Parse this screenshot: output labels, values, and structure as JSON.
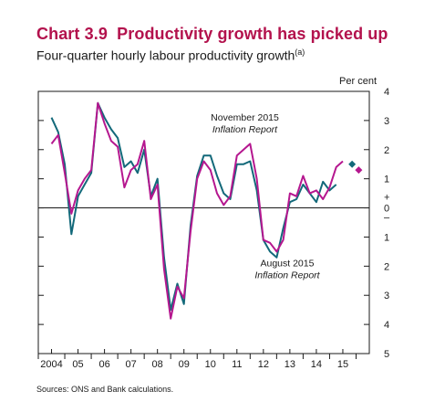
{
  "header": {
    "chart_number": "Chart 3.9",
    "title": "Productivity growth has picked up",
    "subtitle": "Four-quarter hourly labour productivity growth",
    "subtitle_note": "(a)"
  },
  "footer": {
    "source": "Sources:  ONS and Bank calculations."
  },
  "colors": {
    "series_navy": "#13697a",
    "series_magenta": "#b5178f",
    "title_red": "#b3124d",
    "frame": "#1a1a1a"
  },
  "chart_data": {
    "type": "line",
    "unit_label": "Per cent",
    "ylim": [
      -5,
      4
    ],
    "y_axis_direction": "up",
    "y_ticks": [
      -5,
      -4,
      -3,
      -2,
      -1,
      0,
      1,
      2,
      3,
      4
    ],
    "y_tick_labels": [
      "5",
      "4",
      "3",
      "2",
      "1",
      "0",
      "1",
      "2",
      "3",
      "4"
    ],
    "y_sign_labels": [
      "+",
      "–"
    ],
    "xlim": [
      2003.5,
      2016.0
    ],
    "x_tick_labels": [
      "2004",
      "05",
      "06",
      "07",
      "08",
      "09",
      "10",
      "11",
      "12",
      "13",
      "14",
      "15"
    ],
    "x_tick_positions": [
      2004,
      2005,
      2006,
      2007,
      2008,
      2009,
      2010,
      2011,
      2012,
      2013,
      2014,
      2015
    ],
    "grid": false,
    "zero_line": true,
    "series": [
      {
        "color": "#13697a",
        "x": [
          2004.0,
          2004.25,
          2004.5,
          2004.75,
          2005.0,
          2005.25,
          2005.5,
          2005.75,
          2006.0,
          2006.25,
          2006.5,
          2006.75,
          2007.0,
          2007.25,
          2007.5,
          2007.75,
          2008.0,
          2008.25,
          2008.5,
          2008.75,
          2009.0,
          2009.25,
          2009.5,
          2009.75,
          2010.0,
          2010.25,
          2010.5,
          2010.75,
          2011.0,
          2011.25,
          2011.5,
          2011.75,
          2012.0,
          2012.25,
          2012.5,
          2012.75,
          2013.0,
          2013.25,
          2013.5,
          2013.75,
          2014.0,
          2014.25,
          2014.5,
          2014.75
        ],
        "values": [
          3.1,
          2.6,
          1.5,
          -0.9,
          0.4,
          0.8,
          1.2,
          3.6,
          3.1,
          2.7,
          2.4,
          1.4,
          1.6,
          1.2,
          2.0,
          0.4,
          1.0,
          -1.7,
          -3.5,
          -2.6,
          -3.3,
          -0.6,
          1.1,
          1.8,
          1.8,
          1.1,
          0.5,
          0.3,
          1.5,
          1.5,
          1.6,
          0.6,
          -1.1,
          -1.5,
          -1.7,
          -0.7,
          0.2,
          0.3,
          0.8,
          0.5,
          0.2,
          0.9,
          0.6,
          0.8
        ]
      },
      {
        "color": "#b5178f",
        "x": [
          2004.0,
          2004.25,
          2004.5,
          2004.75,
          2005.0,
          2005.25,
          2005.5,
          2005.75,
          2006.0,
          2006.25,
          2006.5,
          2006.75,
          2007.0,
          2007.25,
          2007.5,
          2007.75,
          2008.0,
          2008.25,
          2008.5,
          2008.75,
          2009.0,
          2009.25,
          2009.5,
          2009.75,
          2010.0,
          2010.25,
          2010.5,
          2010.75,
          2011.0,
          2011.25,
          2011.5,
          2011.75,
          2012.0,
          2012.25,
          2012.5,
          2012.75,
          2013.0,
          2013.25,
          2013.5,
          2013.75,
          2014.0,
          2014.25,
          2014.5,
          2014.75,
          2015.0
        ],
        "values": [
          2.2,
          2.5,
          1.2,
          -0.2,
          0.6,
          1.0,
          1.3,
          3.6,
          2.9,
          2.3,
          2.1,
          0.7,
          1.3,
          1.5,
          2.3,
          0.3,
          0.8,
          -2.1,
          -3.8,
          -2.7,
          -3.1,
          -0.8,
          1.0,
          1.6,
          1.3,
          0.5,
          0.1,
          0.4,
          1.8,
          2.0,
          2.2,
          1.0,
          -1.1,
          -1.2,
          -1.5,
          -1.1,
          0.5,
          0.4,
          1.1,
          0.5,
          0.6,
          0.3,
          0.7,
          1.4,
          1.6
        ]
      }
    ],
    "projection_markers": [
      {
        "x": 2015.35,
        "y": 1.5,
        "color": "#13697a",
        "shape": "diamond"
      },
      {
        "x": 2015.6,
        "y": 1.3,
        "color": "#b5178f",
        "shape": "diamond"
      }
    ],
    "annotations": [
      {
        "line1": "November 2015",
        "line2": "Inflation Report",
        "x": 2011.3,
        "y": 3.0
      },
      {
        "line1": "August 2015",
        "line2": "Inflation Report",
        "x": 2012.9,
        "y": -2.0
      }
    ]
  }
}
